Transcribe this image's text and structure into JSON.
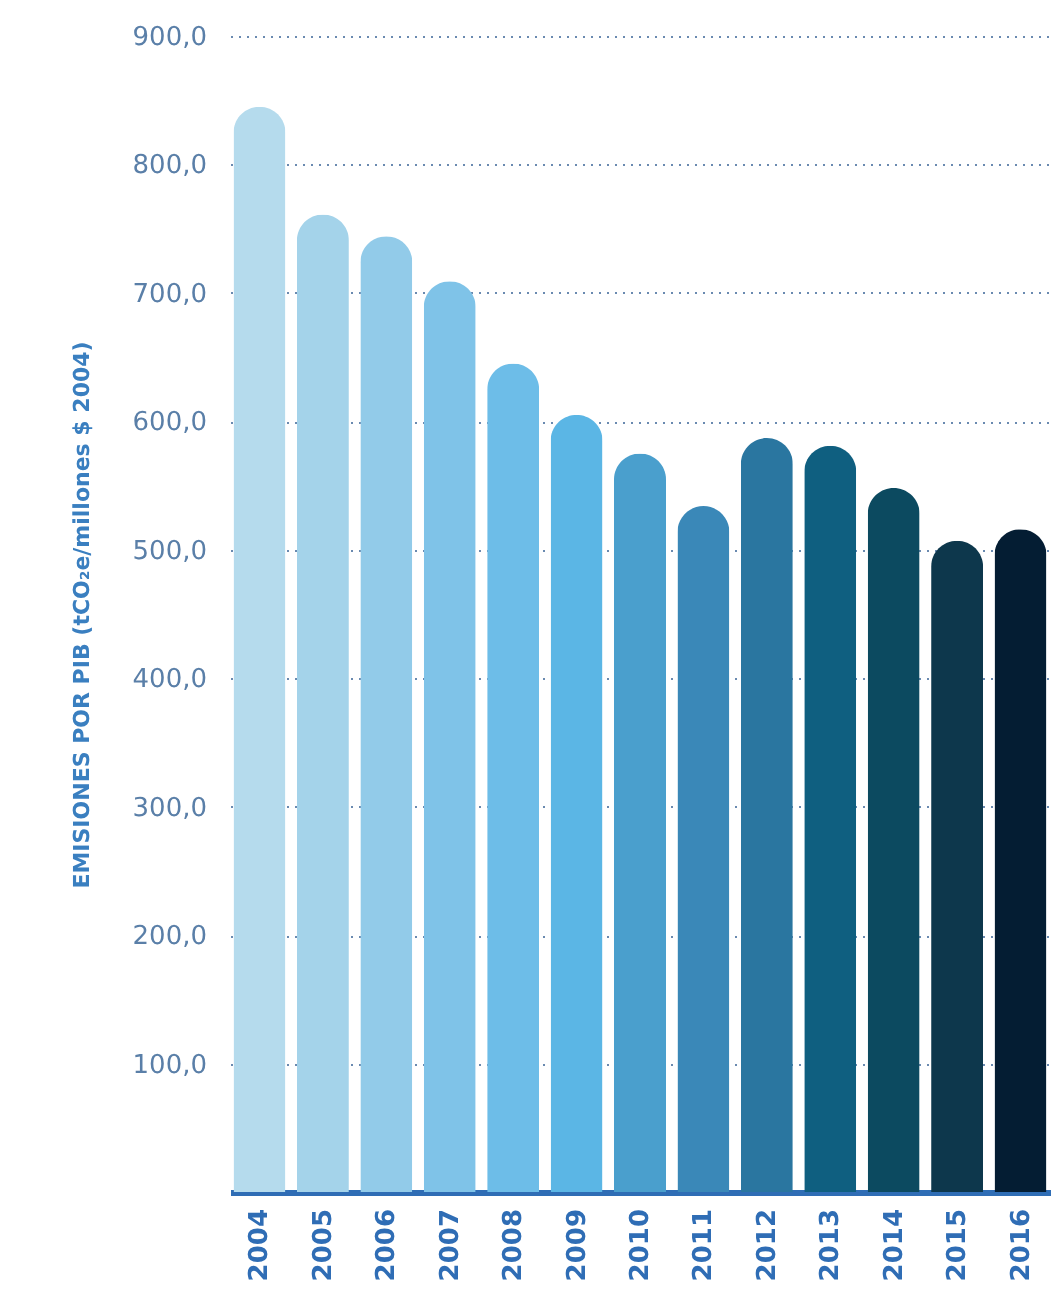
{
  "chart_data": {
    "type": "bar",
    "ylabel": "EMISIONES POR PIB (tCO₂e/millones $ 2004)",
    "categories": [
      "2004",
      "2005",
      "2006",
      "2007",
      "2008",
      "2009",
      "2010",
      "2011",
      "2012",
      "2013",
      "2014",
      "2015",
      "2016"
    ],
    "values": [
      845,
      761,
      744,
      709,
      645,
      605,
      575,
      534,
      587,
      581,
      548,
      507,
      516
    ],
    "colors": [
      "#b5dbed",
      "#a4d3ea",
      "#92cbe9",
      "#7fc3e8",
      "#6dbde8",
      "#5bb6e5",
      "#4a9fcd",
      "#3a88b8",
      "#2a76a0",
      "#0f5f80",
      "#0c4a60",
      "#0d374c",
      "#041d33"
    ],
    "ylim": [
      0,
      900
    ],
    "yticks": [
      {
        "value": 100,
        "label": "100,0"
      },
      {
        "value": 200,
        "label": "200,0"
      },
      {
        "value": 300,
        "label": "300,0"
      },
      {
        "value": 400,
        "label": "400,0"
      },
      {
        "value": 500,
        "label": "500,0"
      },
      {
        "value": 600,
        "label": "600,0"
      },
      {
        "value": 700,
        "label": "700,0"
      },
      {
        "value": 800,
        "label": "800,0"
      },
      {
        "value": 900,
        "label": "900,0"
      }
    ],
    "grid": "y",
    "legend": false
  }
}
